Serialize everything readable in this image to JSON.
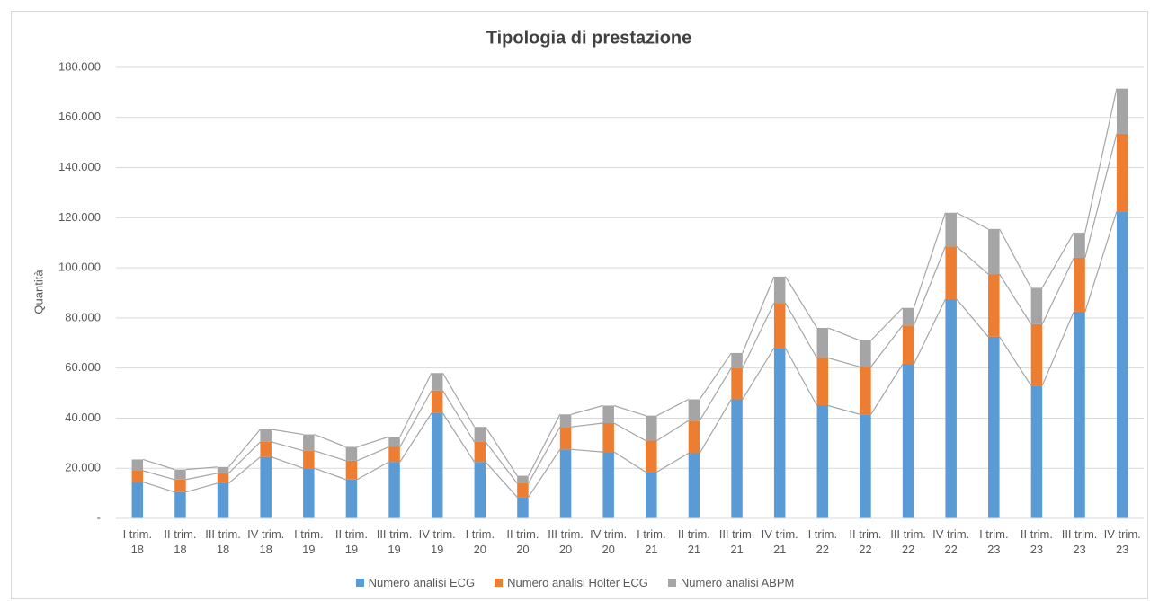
{
  "chart_data": {
    "type": "bar",
    "stacked": true,
    "title": "Tipologia di prestazione",
    "y_label": "Quantità",
    "categories": [
      "I trim. 18",
      "II trim. 18",
      "III trim. 18",
      "IV trim. 18",
      "I trim. 19",
      "II trim. 19",
      "III trim. 19",
      "IV trim. 19",
      "I trim. 20",
      "II trim. 20",
      "III trim. 20",
      "IV trim. 20",
      "I trim. 21",
      "II trim. 21",
      "III trim. 21",
      "IV trim. 21",
      "I trim. 22",
      "II trim. 22",
      "III trim. 22",
      "IV trim. 22",
      "I trim. 23",
      "II trim. 23",
      "III trim. 23",
      "IV trim. 23"
    ],
    "series": [
      {
        "name": "Numero analisi ECG",
        "color": "#5b9bd5",
        "values": [
          14500,
          10500,
          14000,
          24500,
          20000,
          15500,
          22500,
          42000,
          22500,
          8500,
          27500,
          26500,
          18500,
          26000,
          47500,
          68000,
          45000,
          41500,
          61500,
          87500,
          72500,
          53000,
          82500,
          122500
        ]
      },
      {
        "name": "Numero analisi Holter ECG",
        "color": "#ed7d31",
        "values": [
          4500,
          5000,
          4000,
          6000,
          7000,
          7500,
          6000,
          9000,
          8000,
          5500,
          9000,
          11500,
          12500,
          13000,
          12500,
          18000,
          19000,
          19000,
          15500,
          21000,
          25000,
          24500,
          21500,
          31000
        ]
      },
      {
        "name": "Numero analisi ABPM",
        "color": "#a5a5a5",
        "values": [
          4500,
          4000,
          2500,
          5000,
          6500,
          5500,
          4000,
          7000,
          6000,
          3000,
          5000,
          7000,
          10000,
          8500,
          6000,
          10500,
          12000,
          10500,
          7000,
          13500,
          18000,
          14500,
          10000,
          18000
        ]
      }
    ],
    "ylim": [
      0,
      180000
    ],
    "yticks": [
      {
        "value": 0,
        "label": "-"
      },
      {
        "value": 20000,
        "label": "20.000"
      },
      {
        "value": 40000,
        "label": "40.000"
      },
      {
        "value": 60000,
        "label": "60.000"
      },
      {
        "value": 80000,
        "label": "80.000"
      },
      {
        "value": 100000,
        "label": "100.000"
      },
      {
        "value": 120000,
        "label": "120.000"
      },
      {
        "value": 140000,
        "label": "140.000"
      },
      {
        "value": 160000,
        "label": "160.000"
      },
      {
        "value": 180000,
        "label": "180.000"
      }
    ],
    "grid": true,
    "series_lines": true,
    "legend": "bottom"
  }
}
